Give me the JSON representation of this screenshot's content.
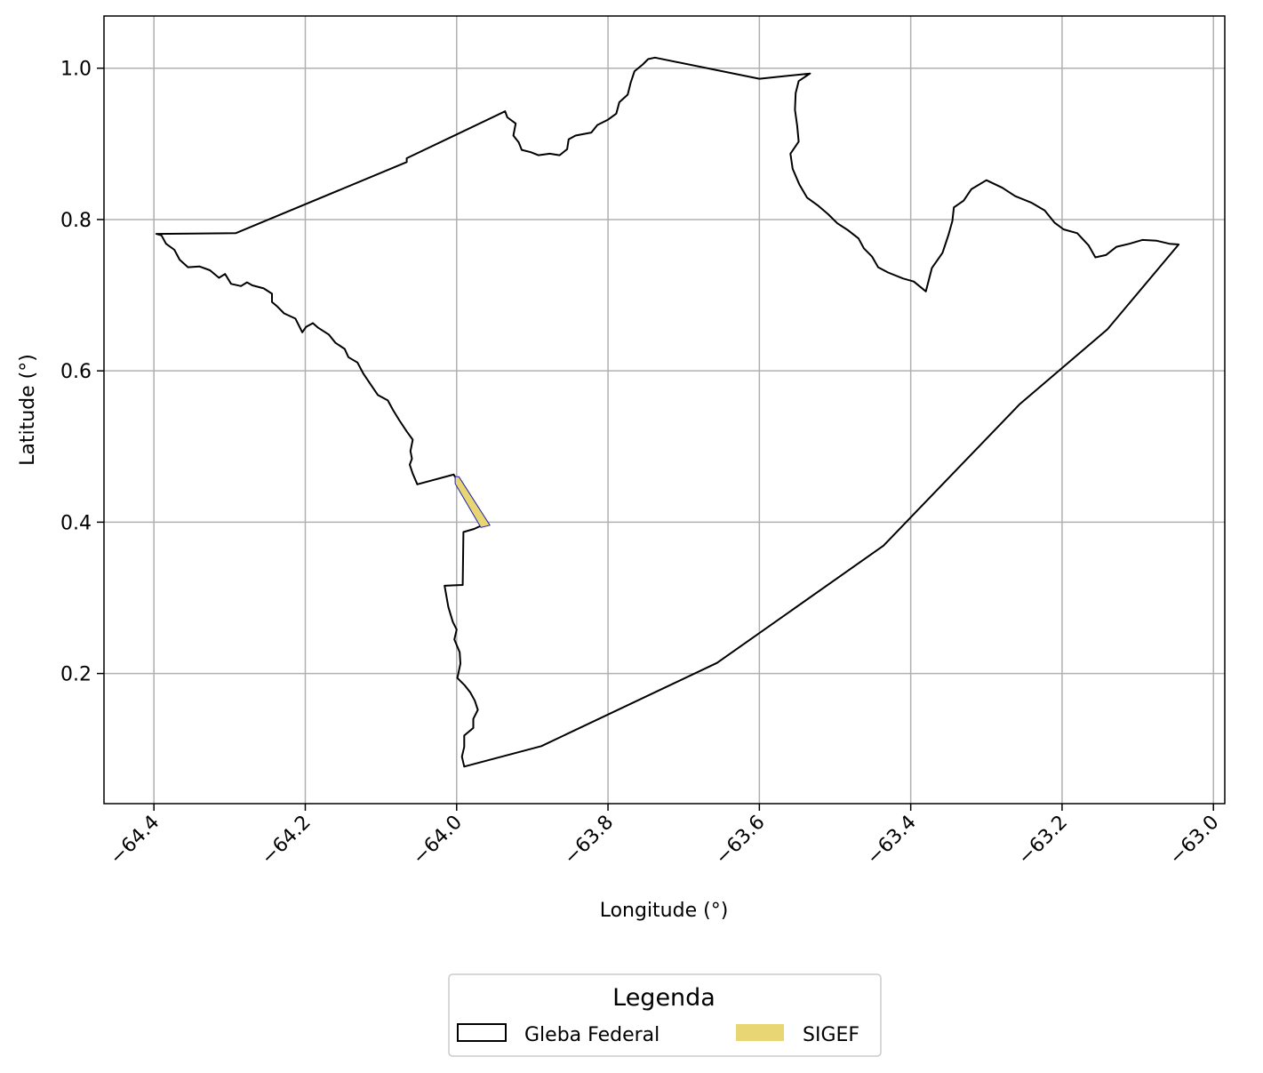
{
  "chart_data": {
    "type": "map",
    "xlabel": "Longitude (°)",
    "ylabel": "Latitude (°)",
    "xlim": [
      -64.466,
      -62.985
    ],
    "ylim": [
      0.028,
      1.069
    ],
    "xticks": [
      -64.4,
      -64.2,
      -64.0,
      -63.8,
      -63.6,
      -63.4,
      -63.2,
      -63.0
    ],
    "xtick_labels": [
      "−64.4",
      "−64.2",
      "−64.0",
      "−63.8",
      "−63.6",
      "−63.4",
      "−63.2",
      "−63.0"
    ],
    "yticks": [
      0.2,
      0.4,
      0.6,
      0.8,
      1.0
    ],
    "ytick_labels": [
      "0.2",
      "0.4",
      "0.6",
      "0.8",
      "1.0"
    ],
    "grid": true,
    "legend": {
      "title": "Legenda",
      "placement": "bottom-center",
      "entries": [
        {
          "label": "Gleba Federal",
          "style": "outline",
          "edge_color": "#000000"
        },
        {
          "label": "SIGEF",
          "style": "fill",
          "fill_color": "#e8d574"
        }
      ]
    },
    "layers": [
      {
        "name": "Gleba Federal",
        "kind": "polygon",
        "edge_color": "#000000",
        "coordinates": [
          [
            -64.397,
            0.781
          ],
          [
            -64.39,
            0.779
          ],
          [
            -64.384,
            0.768
          ],
          [
            -64.373,
            0.76
          ],
          [
            -64.366,
            0.747
          ],
          [
            -64.355,
            0.737
          ],
          [
            -64.34,
            0.738
          ],
          [
            -64.326,
            0.733
          ],
          [
            -64.314,
            0.723
          ],
          [
            -64.306,
            0.728
          ],
          [
            -64.298,
            0.715
          ],
          [
            -64.285,
            0.712
          ],
          [
            -64.277,
            0.717
          ],
          [
            -64.27,
            0.713
          ],
          [
            -64.255,
            0.709
          ],
          [
            -64.244,
            0.702
          ],
          [
            -64.244,
            0.691
          ],
          [
            -64.237,
            0.685
          ],
          [
            -64.228,
            0.676
          ],
          [
            -64.213,
            0.669
          ],
          [
            -64.204,
            0.651
          ],
          [
            -64.199,
            0.658
          ],
          [
            -64.19,
            0.663
          ],
          [
            -64.183,
            0.657
          ],
          [
            -64.169,
            0.648
          ],
          [
            -64.16,
            0.637
          ],
          [
            -64.148,
            0.629
          ],
          [
            -64.143,
            0.618
          ],
          [
            -64.131,
            0.611
          ],
          [
            -64.123,
            0.596
          ],
          [
            -64.115,
            0.584
          ],
          [
            -64.104,
            0.568
          ],
          [
            -64.091,
            0.561
          ],
          [
            -64.084,
            0.548
          ],
          [
            -64.076,
            0.535
          ],
          [
            -64.066,
            0.52
          ],
          [
            -64.058,
            0.509
          ],
          [
            -64.061,
            0.494
          ],
          [
            -64.059,
            0.484
          ],
          [
            -64.062,
            0.476
          ],
          [
            -64.058,
            0.464
          ],
          [
            -64.052,
            0.45
          ],
          [
            -64.004,
            0.463
          ],
          [
            -63.962,
            0.398
          ],
          [
            -63.977,
            0.391
          ],
          [
            -63.991,
            0.387
          ],
          [
            -63.992,
            0.317
          ],
          [
            -64.016,
            0.316
          ],
          [
            -64.011,
            0.288
          ],
          [
            -64.005,
            0.268
          ],
          [
            -64.0,
            0.258
          ],
          [
            -64.003,
            0.245
          ],
          [
            -63.996,
            0.228
          ],
          [
            -63.995,
            0.213
          ],
          [
            -63.999,
            0.194
          ],
          [
            -63.989,
            0.184
          ],
          [
            -63.982,
            0.175
          ],
          [
            -63.976,
            0.164
          ],
          [
            -63.972,
            0.152
          ],
          [
            -63.978,
            0.14
          ],
          [
            -63.978,
            0.128
          ],
          [
            -63.99,
            0.118
          ],
          [
            -63.99,
            0.103
          ],
          [
            -63.993,
            0.09
          ],
          [
            -63.99,
            0.077
          ],
          [
            -63.888,
            0.104
          ],
          [
            -63.656,
            0.214
          ],
          [
            -63.436,
            0.369
          ],
          [
            -63.256,
            0.556
          ],
          [
            -63.14,
            0.655
          ],
          [
            -63.046,
            0.767
          ],
          [
            -63.058,
            0.768
          ],
          [
            -63.075,
            0.772
          ],
          [
            -63.094,
            0.773
          ],
          [
            -63.111,
            0.768
          ],
          [
            -63.128,
            0.764
          ],
          [
            -63.142,
            0.753
          ],
          [
            -63.156,
            0.75
          ],
          [
            -63.165,
            0.766
          ],
          [
            -63.18,
            0.782
          ],
          [
            -63.198,
            0.787
          ],
          [
            -63.21,
            0.796
          ],
          [
            -63.223,
            0.812
          ],
          [
            -63.24,
            0.822
          ],
          [
            -63.262,
            0.831
          ],
          [
            -63.279,
            0.842
          ],
          [
            -63.3,
            0.852
          ],
          [
            -63.32,
            0.84
          ],
          [
            -63.33,
            0.825
          ],
          [
            -63.343,
            0.816
          ],
          [
            -63.345,
            0.798
          ],
          [
            -63.35,
            0.78
          ],
          [
            -63.358,
            0.756
          ],
          [
            -63.372,
            0.736
          ],
          [
            -63.38,
            0.705
          ],
          [
            -63.396,
            0.718
          ],
          [
            -63.41,
            0.722
          ],
          [
            -63.43,
            0.73
          ],
          [
            -63.443,
            0.737
          ],
          [
            -63.451,
            0.751
          ],
          [
            -63.462,
            0.762
          ],
          [
            -63.469,
            0.775
          ],
          [
            -63.483,
            0.786
          ],
          [
            -63.497,
            0.795
          ],
          [
            -63.509,
            0.807
          ],
          [
            -63.522,
            0.818
          ],
          [
            -63.537,
            0.829
          ],
          [
            -63.547,
            0.846
          ],
          [
            -63.556,
            0.867
          ],
          [
            -63.559,
            0.887
          ],
          [
            -63.548,
            0.903
          ],
          [
            -63.55,
            0.924
          ],
          [
            -63.553,
            0.945
          ],
          [
            -63.552,
            0.967
          ],
          [
            -63.548,
            0.983
          ],
          [
            -63.533,
            0.993
          ],
          [
            -63.6,
            0.986
          ],
          [
            -63.738,
            1.014
          ],
          [
            -63.747,
            1.012
          ],
          [
            -63.754,
            1.005
          ],
          [
            -63.765,
            0.996
          ],
          [
            -63.77,
            0.981
          ],
          [
            -63.774,
            0.965
          ],
          [
            -63.785,
            0.955
          ],
          [
            -63.789,
            0.94
          ],
          [
            -63.8,
            0.932
          ],
          [
            -63.814,
            0.925
          ],
          [
            -63.822,
            0.915
          ],
          [
            -63.843,
            0.911
          ],
          [
            -63.852,
            0.906
          ],
          [
            -63.854,
            0.893
          ],
          [
            -63.864,
            0.885
          ],
          [
            -63.877,
            0.887
          ],
          [
            -63.892,
            0.885
          ],
          [
            -63.902,
            0.889
          ],
          [
            -63.914,
            0.892
          ],
          [
            -63.918,
            0.902
          ],
          [
            -63.925,
            0.911
          ],
          [
            -63.922,
            0.927
          ],
          [
            -63.933,
            0.935
          ],
          [
            -63.936,
            0.943
          ],
          [
            -64.066,
            0.881
          ],
          [
            -64.066,
            0.876
          ],
          [
            -64.292,
            0.782
          ],
          [
            -64.397,
            0.781
          ]
        ]
      },
      {
        "name": "SIGEF",
        "kind": "polygon",
        "fill_color": "#e8d574",
        "edge_color": "#2222aa",
        "coordinates": [
          [
            -64.002,
            0.46
          ],
          [
            -63.997,
            0.46
          ],
          [
            -63.956,
            0.396
          ],
          [
            -63.968,
            0.393
          ],
          [
            -64.002,
            0.451
          ],
          [
            -64.002,
            0.46
          ]
        ]
      }
    ]
  }
}
